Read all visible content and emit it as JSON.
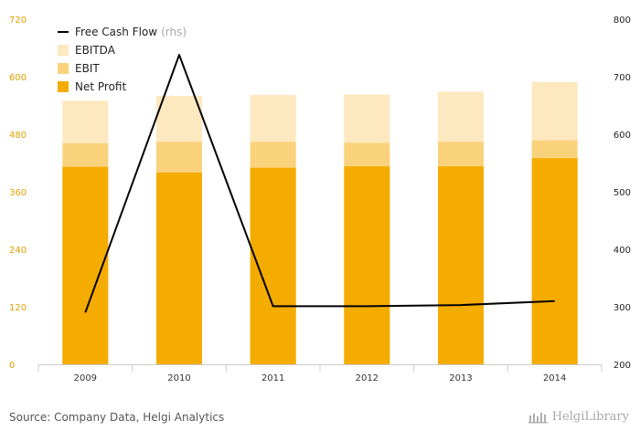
{
  "chart_data": {
    "type": "bar",
    "categories": [
      "2009",
      "2010",
      "2011",
      "2012",
      "2013",
      "2014"
    ],
    "left_axis": {
      "ylim": [
        0,
        720
      ],
      "ticks": [
        0,
        120,
        240,
        360,
        480,
        600,
        720
      ]
    },
    "right_axis": {
      "ylim": [
        200,
        800
      ],
      "ticks": [
        200,
        300,
        400,
        500,
        600,
        700,
        800
      ]
    },
    "series": [
      {
        "name": "Net Profit",
        "type": "bar",
        "axis": "left",
        "color": "#f5ac00",
        "values": [
          412,
          400,
          410,
          413,
          413,
          430
        ]
      },
      {
        "name": "EBIT",
        "type": "bar",
        "axis": "left",
        "color": "#fbd27c",
        "values": [
          461,
          464,
          464,
          462,
          464,
          467
        ]
      },
      {
        "name": "EBITDA",
        "type": "bar",
        "axis": "left",
        "color": "#fde8bf",
        "values": [
          550,
          560,
          562,
          563,
          569,
          589
        ]
      },
      {
        "name": "Free Cash Flow",
        "type": "line",
        "axis": "right",
        "color": "#000000",
        "values": [
          290,
          738,
          301,
          301,
          303,
          310
        ]
      }
    ],
    "legend": [
      {
        "name": "Free Cash Flow",
        "suffix": "(rhs)",
        "marker": "line",
        "color": "#000000"
      },
      {
        "name": "EBITDA",
        "suffix": "",
        "marker": "box",
        "color": "#fde8bf"
      },
      {
        "name": "EBIT",
        "suffix": "",
        "marker": "box",
        "color": "#fbd27c"
      },
      {
        "name": "Net Profit",
        "suffix": "",
        "marker": "box",
        "color": "#f5ac00"
      }
    ],
    "legend_position": "top-left",
    "grid": false
  },
  "footer": {
    "source": "Source: Company Data, Helgi Analytics",
    "logo_text": "HelgiLibrary"
  }
}
